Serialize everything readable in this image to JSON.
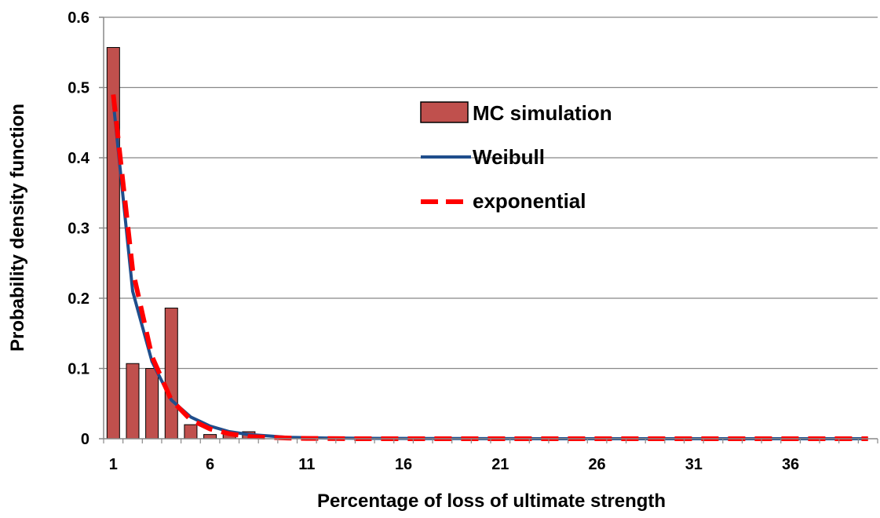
{
  "chart_data": {
    "type": "bar",
    "xlabel": "Percentage of loss of ultimate strength",
    "ylabel": "Probability density function",
    "ylim": [
      0,
      0.6
    ],
    "yticks": [
      "0",
      "0.1",
      "0.2",
      "0.3",
      "0.4",
      "0.5",
      "0.6"
    ],
    "xticks": [
      "1",
      "6",
      "11",
      "16",
      "21",
      "26",
      "31",
      "36"
    ],
    "grid": "horizontal",
    "legend_position": "top-right",
    "colors": {
      "bar_fill": "#c0504d",
      "bar_stroke": "#000000",
      "weibull": "#1f4e8c",
      "exponential": "#ff0000",
      "grid": "#888888"
    },
    "x": [
      1,
      2,
      3,
      4,
      5,
      6,
      7,
      8,
      9,
      10,
      11,
      12,
      13,
      14,
      15,
      16,
      17,
      18,
      19,
      20,
      21,
      22,
      23,
      24,
      25,
      26,
      27,
      28,
      29,
      30,
      31,
      32,
      33,
      34,
      35,
      36,
      37,
      38,
      39,
      40
    ],
    "series": [
      {
        "name": "MC simulation",
        "kind": "bar",
        "values": [
          0.557,
          0.107,
          0.1,
          0.186,
          0.02,
          0.006,
          0.01,
          0.01,
          0,
          0,
          0,
          0,
          0,
          0,
          0,
          0,
          0,
          0,
          0,
          0,
          0,
          0,
          0,
          0,
          0,
          0,
          0,
          0,
          0,
          0,
          0,
          0,
          0,
          0,
          0,
          0,
          0,
          0,
          0,
          0
        ]
      },
      {
        "name": "Weibull",
        "kind": "line",
        "values": [
          0.48,
          0.21,
          0.11,
          0.055,
          0.031,
          0.018,
          0.01,
          0.006,
          0.004,
          0.002,
          0.0015,
          0.001,
          0.0008,
          0.0006,
          0.0005,
          0.0004,
          0.0003,
          0.0002,
          0.0002,
          0.0001,
          0.0001,
          0.0001,
          0,
          0,
          0,
          0,
          0,
          0,
          0,
          0,
          0,
          0,
          0,
          0,
          0,
          0,
          0,
          0,
          0,
          0
        ]
      },
      {
        "name": "exponential",
        "kind": "dashed-line",
        "values": [
          0.49,
          0.24,
          0.117,
          0.055,
          0.027,
          0.014,
          0.007,
          0.003,
          0.002,
          0.001,
          0.0005,
          0.0003,
          0.0001,
          0,
          0,
          0,
          0,
          0,
          0,
          0,
          0,
          0,
          0,
          0,
          0,
          0,
          0,
          0,
          0,
          0,
          0,
          0,
          0,
          0,
          0,
          0,
          0,
          0,
          0,
          0
        ]
      }
    ]
  }
}
